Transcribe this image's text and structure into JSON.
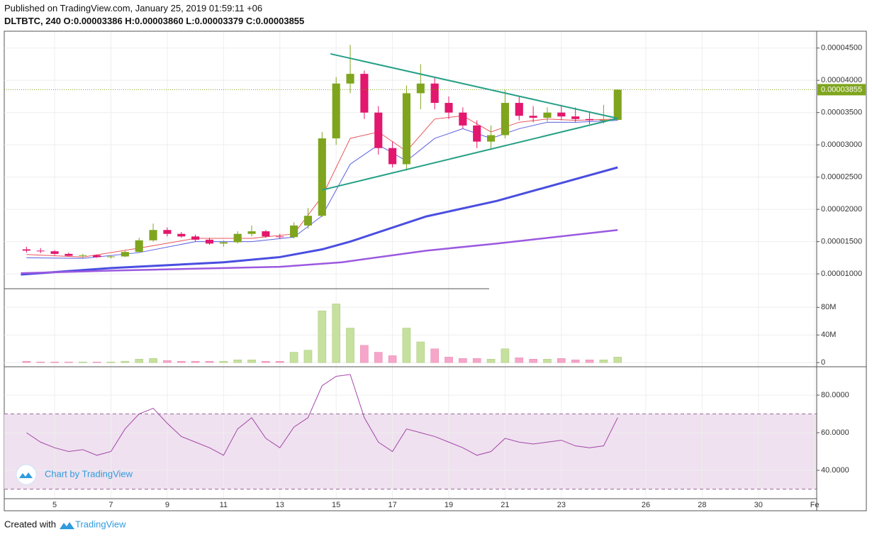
{
  "header": {
    "published": "Published on TradingView.com, January 25, 2019 01:59:11 +06",
    "symbol_line": "DLTBTC, 240 O:0.00003386 H:0.00003860 L:0.00003379 C:0.00003855"
  },
  "watermark": "Chart by TradingView",
  "footer": {
    "created_with": "Created with",
    "brand": "TradingView"
  },
  "chart_data": {
    "type": "candlestick",
    "grid": true,
    "up_color": "#7fa51e",
    "down_color": "#e2176d",
    "volume_up_color": "#c6e09e",
    "volume_down_color": "#f5a6c9",
    "rsi_color": "#a347a8",
    "rsi_band_color": "#efe1ef",
    "x": [
      4,
      4.5,
      5,
      5.5,
      6,
      6.5,
      7,
      7.5,
      8,
      8.5,
      9,
      9.5,
      10,
      10.5,
      11,
      11.5,
      12,
      12.5,
      13,
      13.5,
      14,
      14.5,
      15,
      15.5,
      16,
      16.5,
      17,
      17.5,
      18,
      18.5,
      19,
      19.5,
      20,
      20.5,
      21,
      21.5,
      22,
      22.5,
      23,
      23.5,
      24,
      24.5,
      25
    ],
    "open": [
      1.38e-05,
      1.36e-05,
      1.35e-05,
      1.31e-05,
      1.28e-05,
      1.29e-05,
      1.26e-05,
      1.27e-05,
      1.34e-05,
      1.52e-05,
      1.68e-05,
      1.62e-05,
      1.58e-05,
      1.53e-05,
      1.47e-05,
      1.49e-05,
      1.62e-05,
      1.66e-05,
      1.58e-05,
      1.57e-05,
      1.75e-05,
      1.9e-05,
      3.1e-05,
      3.95e-05,
      4.1e-05,
      3.5e-05,
      2.95e-05,
      2.7e-05,
      3.8e-05,
      3.95e-05,
      3.65e-05,
      3.5e-05,
      3.3e-05,
      3.05e-05,
      3.15e-05,
      3.65e-05,
      3.45e-05,
      3.42e-05,
      3.5e-05,
      3.44e-05,
      3.4e-05,
      3.38e-05,
      3.386e-05
    ],
    "high": [
      1.42e-05,
      1.4e-05,
      1.37e-05,
      1.33e-05,
      1.31e-05,
      1.3e-05,
      1.29e-05,
      1.36e-05,
      1.56e-05,
      1.78e-05,
      1.72e-05,
      1.65e-05,
      1.61e-05,
      1.56e-05,
      1.52e-05,
      1.66e-05,
      1.75e-05,
      1.68e-05,
      1.62e-05,
      1.8e-05,
      2.02e-05,
      3.2e-05,
      4.05e-05,
      4.55e-05,
      4.15e-05,
      3.6e-05,
      3.05e-05,
      3.92e-05,
      4.25e-05,
      4.05e-05,
      3.75e-05,
      3.58e-05,
      3.38e-05,
      3.3e-05,
      3.85e-05,
      3.75e-05,
      3.6e-05,
      3.58e-05,
      3.62e-05,
      3.58e-05,
      3.52e-05,
      3.62e-05,
      3.86e-05
    ],
    "low": [
      1.33e-05,
      1.32e-05,
      1.29e-05,
      1.27e-05,
      1.25e-05,
      1.25e-05,
      1.24e-05,
      1.26e-05,
      1.33e-05,
      1.5e-05,
      1.58e-05,
      1.56e-05,
      1.5e-05,
      1.45e-05,
      1.42e-05,
      1.47e-05,
      1.58e-05,
      1.56e-05,
      1.54e-05,
      1.55e-05,
      1.7e-05,
      1.88e-05,
      3e-05,
      3.8e-05,
      3.4e-05,
      2.85e-05,
      2.65e-05,
      2.6e-05,
      3.55e-05,
      3.55e-05,
      3.4e-05,
      3.25e-05,
      2.95e-05,
      2.92e-05,
      3.1e-05,
      3.38e-05,
      3.35e-05,
      3.36e-05,
      3.38e-05,
      3.35e-05,
      3.32e-05,
      3.33e-05,
      3.379e-05
    ],
    "close": [
      1.36e-05,
      1.35e-05,
      1.31e-05,
      1.28e-05,
      1.29e-05,
      1.26e-05,
      1.27e-05,
      1.34e-05,
      1.52e-05,
      1.68e-05,
      1.62e-05,
      1.58e-05,
      1.53e-05,
      1.47e-05,
      1.49e-05,
      1.62e-05,
      1.66e-05,
      1.58e-05,
      1.57e-05,
      1.75e-05,
      1.9e-05,
      3.1e-05,
      3.95e-05,
      4.1e-05,
      3.5e-05,
      2.95e-05,
      2.7e-05,
      3.8e-05,
      3.95e-05,
      3.65e-05,
      3.5e-05,
      3.3e-05,
      3.05e-05,
      3.15e-05,
      3.65e-05,
      3.45e-05,
      3.42e-05,
      3.5e-05,
      3.44e-05,
      3.4e-05,
      3.38e-05,
      3.386e-05,
      3.855e-05
    ],
    "volume": [
      2000000.0,
      1000000.0,
      1000000.0,
      1000000.0,
      1000000.0,
      1000000.0,
      1000000.0,
      2000000.0,
      5000000.0,
      6000000.0,
      3000000.0,
      2000000.0,
      2000000.0,
      2000000.0,
      2000000.0,
      4000000.0,
      4000000.0,
      2000000.0,
      2000000.0,
      15000000.0,
      18000000.0,
      75000000.0,
      85000000.0,
      50000000.0,
      25000000.0,
      15000000.0,
      10000000.0,
      50000000.0,
      30000000.0,
      20000000.0,
      8000000.0,
      6000000.0,
      6000000.0,
      5000000.0,
      20000000.0,
      7000000.0,
      5000000.0,
      5000000.0,
      6000000.0,
      4000000.0,
      4000000.0,
      4000000.0,
      8000000.0
    ],
    "rsi": [
      60,
      55,
      52,
      50,
      51,
      48,
      50,
      62,
      70,
      73,
      65,
      58,
      55,
      52,
      48,
      62,
      68,
      57,
      52,
      63,
      68,
      85,
      90,
      91,
      68,
      55,
      50,
      62,
      60,
      58,
      55,
      52,
      48,
      50,
      57,
      55,
      54,
      55,
      56,
      53,
      52,
      53,
      68
    ],
    "moving_averages": [
      {
        "color": "#e8555a",
        "width": 1,
        "x": [
          4,
          6,
          8,
          10,
          12,
          13.5,
          14.5,
          15.5,
          16.5,
          17.5,
          18.5,
          19.5,
          20.5,
          21.5,
          22.5,
          23.5,
          25
        ],
        "values": [
          1.3e-05,
          1.26e-05,
          1.4e-05,
          1.55e-05,
          1.55e-05,
          1.62e-05,
          2.2e-05,
          3.1e-05,
          3.2e-05,
          2.9e-05,
          3.4e-05,
          3.45e-05,
          3.2e-05,
          3.35e-05,
          3.4e-05,
          3.38e-05,
          3.4e-05
        ]
      },
      {
        "color": "#5b5fe0",
        "width": 1,
        "x": [
          4,
          6,
          8,
          10,
          12,
          13.5,
          14.5,
          15.5,
          16.5,
          17.5,
          18.5,
          19.5,
          20.5,
          21.5,
          22.5,
          23.5,
          25
        ],
        "values": [
          1.25e-05,
          1.24e-05,
          1.33e-05,
          1.5e-05,
          1.5e-05,
          1.57e-05,
          1.9e-05,
          2.7e-05,
          3e-05,
          2.75e-05,
          3.1e-05,
          3.25e-05,
          3.1e-05,
          3.25e-05,
          3.35e-05,
          3.35e-05,
          3.38e-05
        ]
      },
      {
        "color": "#4a4ee0",
        "width": 3,
        "x": [
          3.8,
          7,
          11,
          13,
          14.5,
          15.5,
          18.2,
          20.7,
          25
        ],
        "values": [
          9.9e-06,
          1.09e-05,
          1.18e-05,
          1.26e-05,
          1.38e-05,
          1.5e-05,
          1.89e-05,
          2.13e-05,
          2.65e-05
        ]
      },
      {
        "color": "#9b59e0",
        "width": 2.5,
        "x": [
          3.8,
          7,
          11,
          13,
          15.2,
          18.2,
          20.7,
          25
        ],
        "values": [
          1.01e-05,
          1.05e-05,
          1.09e-05,
          1.11e-05,
          1.18e-05,
          1.36e-05,
          1.47e-05,
          1.68e-05
        ]
      }
    ],
    "trendlines": [
      {
        "color": "#26a087",
        "x": [
          14.8,
          25.0
        ],
        "values": [
          4.41e-05,
          3.41e-05
        ]
      },
      {
        "color": "#26a087",
        "x": [
          14.5,
          25.0
        ],
        "values": [
          2.3e-05,
          3.41e-05
        ]
      }
    ],
    "last_price": {
      "value": 3.855e-05,
      "label": "0.00003855"
    },
    "xlim": [
      3.21,
      32.07
    ],
    "xticks": [
      5,
      7,
      9,
      11,
      13,
      15,
      17,
      19,
      21,
      23,
      26,
      28,
      30,
      {
        "value": 32,
        "label": "Fe"
      }
    ],
    "ylim": [
      7.7e-06,
      4.75e-05
    ],
    "yticks": [
      {
        "value": 4.5e-05,
        "label": "0.00004500"
      },
      {
        "value": 4e-05,
        "label": "0.00004000"
      },
      {
        "value": 3.5e-05,
        "label": "0.00003500"
      },
      {
        "value": 3e-05,
        "label": "0.00003000"
      },
      {
        "value": 2.5e-05,
        "label": "0.00002500"
      },
      {
        "value": 2e-05,
        "label": "0.00002000"
      },
      {
        "value": 1.5e-05,
        "label": "0.00001500"
      },
      {
        "value": 1e-05,
        "label": "0.00001000"
      }
    ],
    "volume_ylim": [
      -6000000,
      107000000
    ],
    "volume_yticks": [
      0,
      {
        "value": 40000000,
        "label": "40M"
      },
      {
        "value": 80000000,
        "label": "80M"
      }
    ],
    "rsi_ylim": [
      24.9,
      95.1
    ],
    "rsi_yticks": [
      {
        "value": 40,
        "label": "40.0000"
      },
      {
        "value": 60,
        "label": "60.0000"
      },
      {
        "value": 80,
        "label": "80.0000"
      }
    ],
    "rsi_bands": [
      30,
      70
    ]
  }
}
